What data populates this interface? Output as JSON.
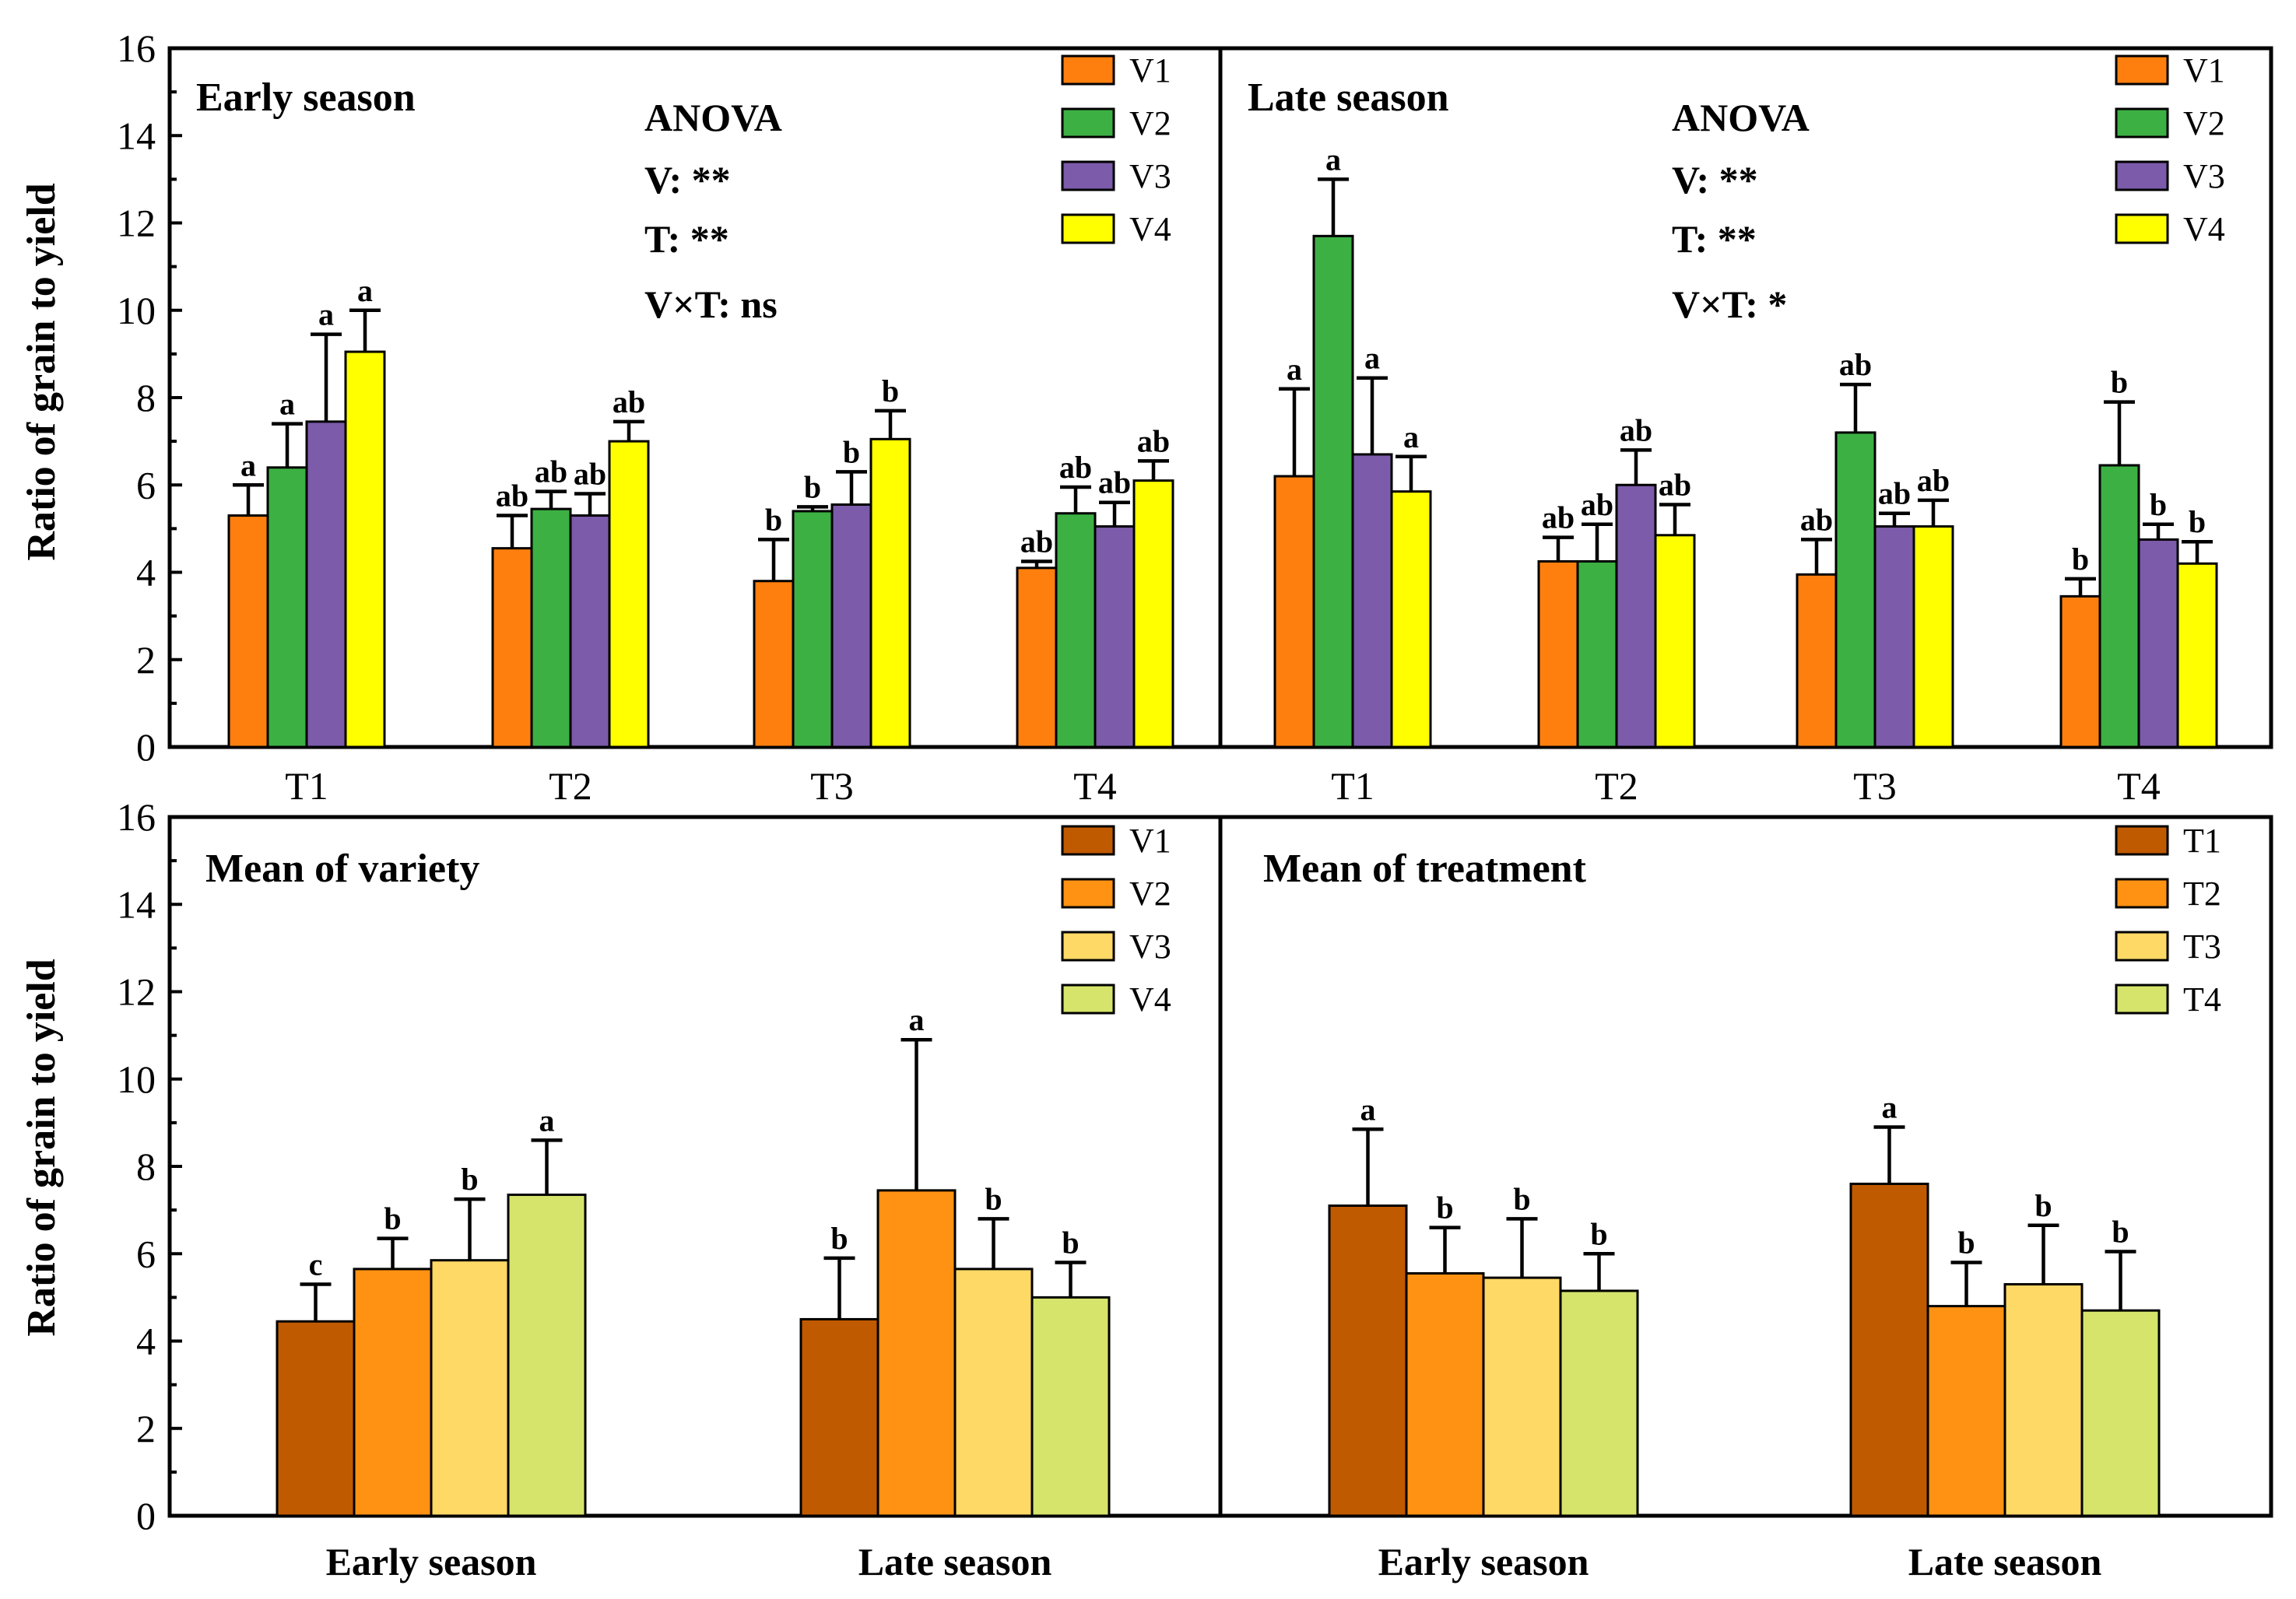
{
  "chart_data": [
    {
      "type": "bar",
      "title": "Early season",
      "ylabel": "Ratio of grain to yield",
      "ylim": [
        0,
        16
      ],
      "yticks": [
        0,
        2,
        4,
        6,
        8,
        10,
        12,
        14,
        16
      ],
      "categories": [
        "T1",
        "T2",
        "T3",
        "T4"
      ],
      "series": [
        {
          "name": "V1",
          "color": "#FF7F0E",
          "values": [
            5.3,
            4.55,
            3.8,
            4.1
          ],
          "errors": [
            0.7,
            0.75,
            0.95,
            0.15
          ],
          "labels": [
            "a",
            "ab",
            "b",
            "ab"
          ]
        },
        {
          "name": "V2",
          "color": "#3CB043",
          "values": [
            6.4,
            5.45,
            5.4,
            5.35
          ],
          "errors": [
            1.0,
            0.4,
            0.1,
            0.6
          ],
          "labels": [
            "a",
            "ab",
            "b",
            "ab"
          ]
        },
        {
          "name": "V3",
          "color": "#7B5BAA",
          "values": [
            7.45,
            5.3,
            5.55,
            5.05
          ],
          "errors": [
            2.0,
            0.5,
            0.75,
            0.55
          ],
          "labels": [
            "a",
            "ab",
            "b",
            "ab"
          ]
        },
        {
          "name": "V4",
          "color": "#FFFF00",
          "values": [
            9.05,
            7.0,
            7.05,
            6.1
          ],
          "errors": [
            0.95,
            0.45,
            0.65,
            0.45
          ],
          "labels": [
            "a",
            "ab",
            "b",
            "ab"
          ]
        }
      ],
      "anova": [
        "ANOVA",
        "V: **",
        "T:  **",
        "V×T: ns"
      ]
    },
    {
      "type": "bar",
      "title": "Late season",
      "ylim": [
        0,
        16
      ],
      "categories": [
        "T1",
        "T2",
        "T3",
        "T4"
      ],
      "series": [
        {
          "name": "V1",
          "color": "#FF7F0E",
          "values": [
            6.2,
            4.25,
            3.95,
            3.45
          ],
          "errors": [
            2.0,
            0.55,
            0.8,
            0.4
          ],
          "labels": [
            "a",
            "ab",
            "ab",
            "b"
          ]
        },
        {
          "name": "V2",
          "color": "#3CB043",
          "values": [
            11.7,
            4.25,
            7.2,
            6.45
          ],
          "errors": [
            1.3,
            0.85,
            1.1,
            1.45
          ],
          "labels": [
            "a",
            "ab",
            "ab",
            "b"
          ]
        },
        {
          "name": "V3",
          "color": "#7B5BAA",
          "values": [
            6.7,
            6.0,
            5.05,
            4.75
          ],
          "errors": [
            1.75,
            0.8,
            0.3,
            0.35
          ],
          "labels": [
            "a",
            "ab",
            "ab",
            "b"
          ]
        },
        {
          "name": "V4",
          "color": "#FFFF00",
          "values": [
            5.85,
            4.85,
            5.05,
            4.2
          ],
          "errors": [
            0.8,
            0.7,
            0.6,
            0.5
          ],
          "labels": [
            "a",
            "ab",
            "ab",
            "b"
          ]
        }
      ],
      "anova": [
        "ANOVA",
        "V: **",
        "T: **",
        "V×T: *"
      ]
    },
    {
      "type": "bar",
      "title": "Mean of variety",
      "ylabel": "Ratio of grain to yield",
      "ylim": [
        0,
        16
      ],
      "yticks": [
        0,
        2,
        4,
        6,
        8,
        10,
        12,
        14,
        16
      ],
      "categories": [
        "Early season",
        "Late season"
      ],
      "series": [
        {
          "name": "V1",
          "color": "#C05A00",
          "values": [
            4.45,
            4.5
          ],
          "errors": [
            0.85,
            1.4
          ],
          "labels": [
            "c",
            "b"
          ]
        },
        {
          "name": "V2",
          "color": "#FF9212",
          "values": [
            5.65,
            7.45
          ],
          "errors": [
            0.7,
            3.45
          ],
          "labels": [
            "b",
            "a"
          ]
        },
        {
          "name": "V3",
          "color": "#FFD966",
          "values": [
            5.85,
            5.65
          ],
          "errors": [
            1.4,
            1.15
          ],
          "labels": [
            "b",
            "b"
          ]
        },
        {
          "name": "V4",
          "color": "#D6E46B",
          "values": [
            7.35,
            5.0
          ],
          "errors": [
            1.25,
            0.8
          ],
          "labels": [
            "a",
            "b"
          ]
        }
      ]
    },
    {
      "type": "bar",
      "title": "Mean of treatment",
      "ylim": [
        0,
        16
      ],
      "categories": [
        "Early season",
        "Late season"
      ],
      "series": [
        {
          "name": "T1",
          "color": "#C05A00",
          "values": [
            7.1,
            7.6
          ],
          "errors": [
            1.75,
            1.3
          ],
          "labels": [
            "a",
            "a"
          ]
        },
        {
          "name": "T2",
          "color": "#FF9212",
          "values": [
            5.55,
            4.8
          ],
          "errors": [
            1.05,
            1.0
          ],
          "labels": [
            "b",
            "b"
          ]
        },
        {
          "name": "T3",
          "color": "#FFD966",
          "values": [
            5.45,
            5.3
          ],
          "errors": [
            1.35,
            1.35
          ],
          "labels": [
            "b",
            "b"
          ]
        },
        {
          "name": "T4",
          "color": "#D6E46B",
          "values": [
            5.15,
            4.7
          ],
          "errors": [
            0.85,
            1.35
          ],
          "labels": [
            "b",
            "b"
          ]
        }
      ]
    }
  ]
}
